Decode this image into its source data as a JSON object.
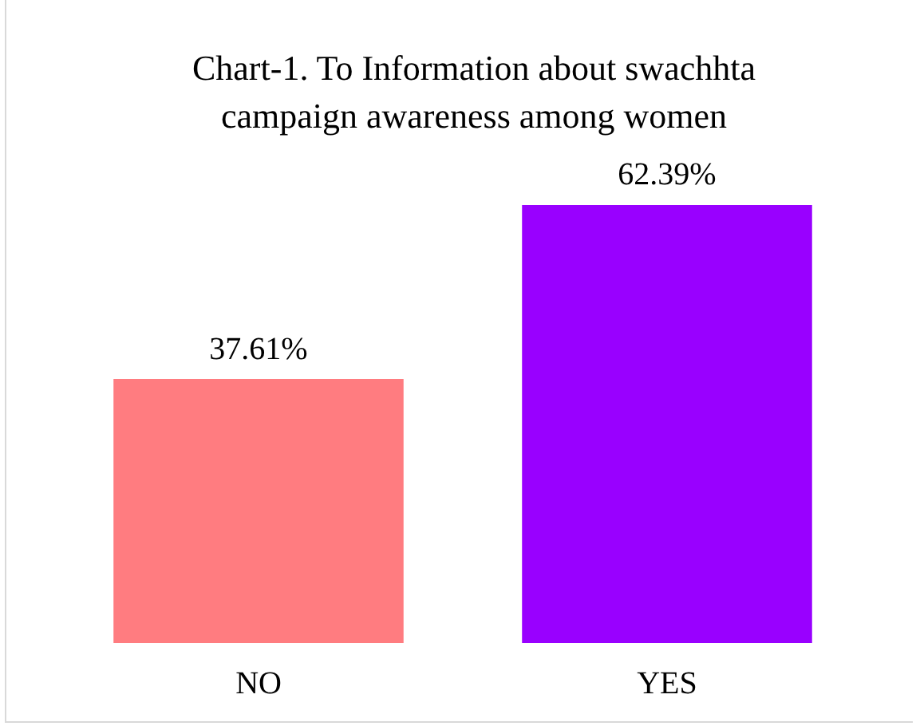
{
  "chart_data": {
    "type": "bar",
    "title": "Chart-1. To Information about swachhta campaign awareness among women",
    "categories": [
      "NO",
      "YES"
    ],
    "values": [
      37.61,
      62.39
    ],
    "colors": [
      "#ff7c80",
      "#9900ff"
    ],
    "value_labels": [
      "37.61%",
      "62.39%"
    ],
    "tick_labels": "x",
    "grid": false,
    "legend": false
  }
}
